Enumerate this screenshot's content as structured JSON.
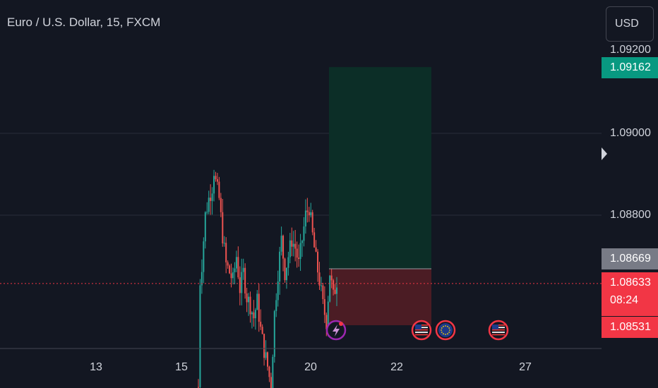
{
  "title": "Euro / U.S. Dollar, 15, FXCM",
  "currency_button": "USD",
  "colors": {
    "background": "#131722",
    "up": "#26a69a",
    "down": "#ef5350",
    "target_zone": "#0c2e27",
    "stop_zone": "#4b1c24",
    "current_price_line": "#f23645"
  },
  "axis": {
    "partial_top_tick": "1.09200",
    "ticks": [
      "1.09000",
      "1.08800"
    ]
  },
  "price_labels": {
    "target": "1.09162",
    "entry": "1.08669",
    "current": "1.08633",
    "countdown": "08:24",
    "stop": "1.08531"
  },
  "date_labels": [
    "13",
    "15",
    "20",
    "22",
    "27"
  ],
  "event_icons": [
    {
      "name": "lightning-icon",
      "color": "#9c27b0"
    },
    {
      "name": "us-flag-icon",
      "color": "#f23645"
    },
    {
      "name": "eu-flag-icon",
      "color": "#f23645"
    },
    {
      "name": "us-flag-icon",
      "color": "#f23645"
    }
  ],
  "chart_data": {
    "type": "candlestick",
    "symbol": "Euro / U.S. Dollar",
    "interval": "15",
    "source": "FXCM",
    "y_ticks": [
      1.09,
      1.088
    ],
    "x_ticks": [
      "13",
      "15",
      "20",
      "22",
      "27"
    ],
    "ylim": [
      1.0837,
      1.0932
    ],
    "price_path": [
      [
        0,
        1.0838
      ],
      [
        1,
        1.0864
      ],
      [
        2,
        1.0868
      ],
      [
        4,
        1.088
      ],
      [
        6,
        1.0884
      ],
      [
        8,
        1.0887
      ],
      [
        9,
        1.0891
      ],
      [
        10,
        1.0888
      ],
      [
        12,
        1.0884
      ],
      [
        14,
        1.0875
      ],
      [
        16,
        1.0868
      ],
      [
        18,
        1.0866
      ],
      [
        20,
        1.0864
      ],
      [
        22,
        1.087
      ],
      [
        24,
        1.0862
      ],
      [
        26,
        1.0866
      ],
      [
        28,
        1.086
      ],
      [
        30,
        1.0858
      ],
      [
        32,
        1.0855
      ],
      [
        34,
        1.0859
      ],
      [
        36,
        1.0852
      ],
      [
        38,
        1.0847
      ],
      [
        40,
        1.0843
      ],
      [
        42,
        1.0838
      ],
      [
        44,
        1.0856
      ],
      [
        46,
        1.0866
      ],
      [
        48,
        1.0874
      ],
      [
        50,
        1.0866
      ],
      [
        52,
        1.087
      ],
      [
        54,
        1.0874
      ],
      [
        56,
        1.0872
      ],
      [
        58,
        1.0868
      ],
      [
        60,
        1.0874
      ],
      [
        62,
        1.088
      ],
      [
        64,
        1.0882
      ],
      [
        66,
        1.0875
      ],
      [
        68,
        1.0869
      ],
      [
        70,
        1.0864
      ],
      [
        72,
        1.0858
      ],
      [
        74,
        1.0854
      ],
      [
        76,
        1.0866
      ],
      [
        78,
        1.086
      ],
      [
        80,
        1.0864
      ]
    ],
    "position": {
      "type": "long",
      "target": 1.09162,
      "entry": 1.08669,
      "stop": 1.08531
    },
    "current_price": 1.08633,
    "countdown": "08:24"
  }
}
